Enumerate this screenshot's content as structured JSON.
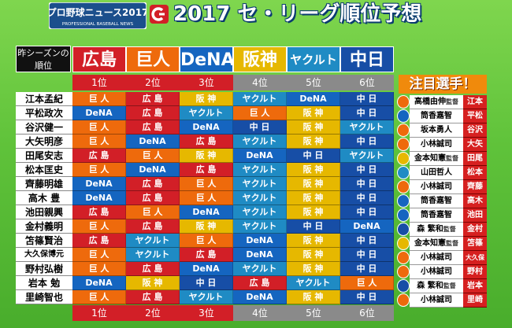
{
  "header": {
    "logo_text": "プロ野球ニュース2017",
    "logo_sub": "PROFESSIONAL BASEBALL NEWS",
    "title": "2017 セ・リーグ順位予想"
  },
  "prev_season_label": [
    "昨シーズンの",
    "順位"
  ],
  "teams": [
    {
      "label": "広島",
      "color": "#d21f27"
    },
    {
      "label": "巨人",
      "color": "#ee6a0c"
    },
    {
      "label": "DeNA",
      "color": "#1565c0"
    },
    {
      "label": "阪神",
      "color": "#e6b800"
    },
    {
      "label": "ヤクルト",
      "color": "#1f8bc4"
    },
    {
      "label": "中日",
      "color": "#174ea6"
    }
  ],
  "rank_headers": [
    "1位",
    "2位",
    "3位",
    "4位",
    "5位",
    "6位"
  ],
  "team_colors": {
    "巨 人": "#ee6a0c",
    "広 島": "#d21f27",
    "DeNA": "#1565c0",
    "阪 神": "#e6b800",
    "ヤクルト": "#1f8bc4",
    "中 日": "#174ea6"
  },
  "rows": [
    {
      "name": "江本孟紀",
      "picks": [
        "巨 人",
        "広 島",
        "阪 神",
        "ヤクルト",
        "DeNA",
        "中 日"
      ]
    },
    {
      "name": "平松政次",
      "picks": [
        "DeNA",
        "広 島",
        "ヤクルト",
        "巨 人",
        "阪 神",
        "中 日"
      ]
    },
    {
      "name": "谷沢健一",
      "picks": [
        "巨 人",
        "広 島",
        "DeNA",
        "中 日",
        "阪 神",
        "ヤクルト"
      ]
    },
    {
      "name": "大矢明彦",
      "picks": [
        "巨 人",
        "DeNA",
        "広 島",
        "ヤクルト",
        "阪 神",
        "中 日"
      ]
    },
    {
      "name": "田尾安志",
      "picks": [
        "広 島",
        "巨 人",
        "阪 神",
        "DeNA",
        "中 日",
        "ヤクルト"
      ]
    },
    {
      "name": "松本匡史",
      "picks": [
        "巨 人",
        "DeNA",
        "広 島",
        "ヤクルト",
        "阪 神",
        "中 日"
      ]
    },
    {
      "name": "齊藤明雄",
      "picks": [
        "DeNA",
        "広 島",
        "巨 人",
        "ヤクルト",
        "阪 神",
        "中 日"
      ]
    },
    {
      "name": "高木 豊",
      "picks": [
        "DeNA",
        "広 島",
        "巨 人",
        "ヤクルト",
        "阪 神",
        "中 日"
      ]
    },
    {
      "name": "池田親興",
      "picks": [
        "広 島",
        "巨 人",
        "DeNA",
        "ヤクルト",
        "阪 神",
        "中 日"
      ]
    },
    {
      "name": "金村義明",
      "picks": [
        "巨 人",
        "広 島",
        "阪 神",
        "ヤクルト",
        "中 日",
        "DeNA"
      ]
    },
    {
      "name": "笘篠賢治",
      "picks": [
        "広 島",
        "ヤクルト",
        "巨 人",
        "DeNA",
        "阪 神",
        "中 日"
      ]
    },
    {
      "name": "大久保博元",
      "picks": [
        "巨 人",
        "ヤクルト",
        "広 島",
        "DeNA",
        "阪 神",
        "中 日"
      ]
    },
    {
      "name": "野村弘樹",
      "picks": [
        "巨 人",
        "広 島",
        "DeNA",
        "ヤクルト",
        "阪 神",
        "中 日"
      ]
    },
    {
      "name": "岩本 勉",
      "picks": [
        "DeNA",
        "阪 神",
        "中 日",
        "広 島",
        "ヤクルト",
        "巨 人"
      ]
    },
    {
      "name": "里崎智也",
      "picks": [
        "巨 人",
        "広 島",
        "ヤクルト",
        "DeNA",
        "阪 神",
        "中 日"
      ]
    }
  ],
  "attention": {
    "title": "注目選手！",
    "picks": [
      {
        "player": "高橋由伸",
        "role": "監督",
        "picker": "江本",
        "icon": "giants-icon",
        "icon_color": "#ee6a0c"
      },
      {
        "player": "筒香嘉智",
        "role": "",
        "picker": "平松",
        "icon": "baystars-icon",
        "icon_color": "#1565c0"
      },
      {
        "player": "坂本勇人",
        "role": "",
        "picker": "谷沢",
        "icon": "giants-icon",
        "icon_color": "#ee6a0c"
      },
      {
        "player": "小林誠司",
        "role": "",
        "picker": "大矢",
        "icon": "giants-icon",
        "icon_color": "#ee6a0c"
      },
      {
        "player": "金本知憲",
        "role": "監督",
        "picker": "田尾",
        "icon": "tigers-icon",
        "icon_color": "#e6b800"
      },
      {
        "player": "山田哲人",
        "role": "",
        "picker": "松本",
        "icon": "swallows-icon",
        "icon_color": "#1f8bc4"
      },
      {
        "player": "小林誠司",
        "role": "",
        "picker": "齊藤",
        "icon": "giants-icon",
        "icon_color": "#ee6a0c"
      },
      {
        "player": "筒香嘉智",
        "role": "",
        "picker": "高木",
        "icon": "baystars-icon",
        "icon_color": "#1565c0"
      },
      {
        "player": "筒香嘉智",
        "role": "",
        "picker": "池田",
        "icon": "baystars-icon",
        "icon_color": "#1565c0"
      },
      {
        "player": "森 繁和",
        "role": "監督",
        "picker": "金村",
        "icon": "dragons-icon",
        "icon_color": "#174ea6"
      },
      {
        "player": "金本知憲",
        "role": "監督",
        "picker": "笘篠",
        "icon": "tigers-icon",
        "icon_color": "#e6b800"
      },
      {
        "player": "小林誠司",
        "role": "",
        "picker": "大久保",
        "icon": "giants-icon",
        "icon_color": "#ee6a0c"
      },
      {
        "player": "小林誠司",
        "role": "",
        "picker": "野村",
        "icon": "giants-icon",
        "icon_color": "#ee6a0c"
      },
      {
        "player": "森 繁和",
        "role": "監督",
        "picker": "岩本",
        "icon": "dragons-icon",
        "icon_color": "#174ea6"
      },
      {
        "player": "小林誠司",
        "role": "",
        "picker": "里崎",
        "icon": "giants-icon",
        "icon_color": "#ee6a0c"
      }
    ]
  }
}
